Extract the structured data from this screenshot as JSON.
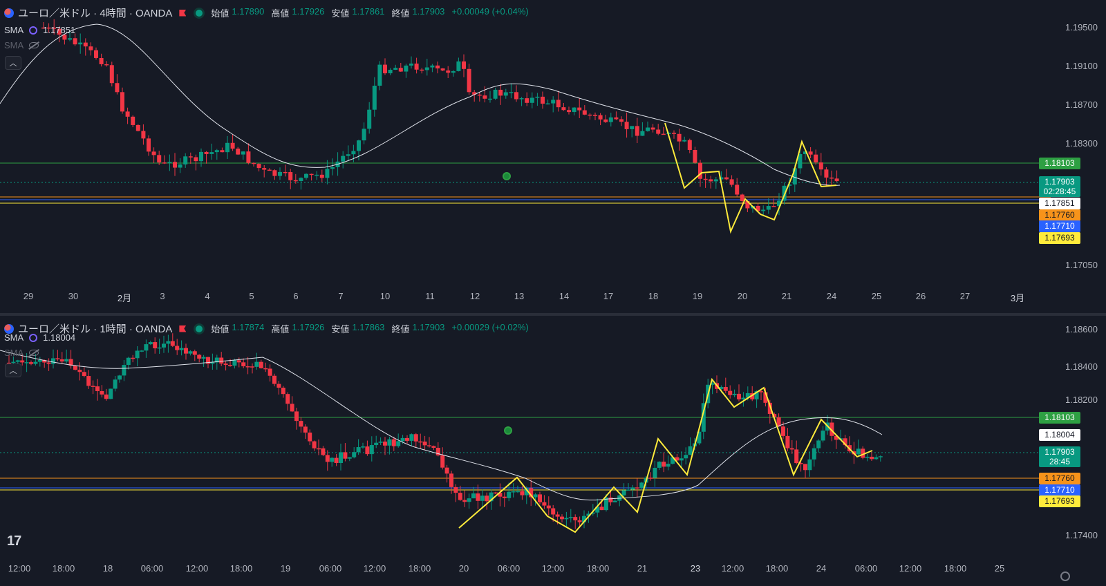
{
  "top": {
    "title": "ユーロ／米ドル · 4時間 · OANDA",
    "ohlc": [
      {
        "k": "始値",
        "v": "1.17890"
      },
      {
        "k": "高値",
        "v": "1.17926"
      },
      {
        "k": "安値",
        "v": "1.17861"
      },
      {
        "k": "終値",
        "v": "1.17903"
      }
    ],
    "change": "+0.00049 (+0.04%)",
    "sma1_label": "SMA",
    "sma1_value": "1.17851",
    "sma2_label": "SMA",
    "y_ticks": [
      "1.19500",
      "1.19100",
      "1.18700",
      "1.18300",
      "1.17050"
    ],
    "price_labels": {
      "green": "1.18103",
      "last": "1.17903",
      "countdown": "02:28:45",
      "sma": "1.17851",
      "orange": "1.17760",
      "blue": "1.17710",
      "yellow": "1.17693"
    },
    "x_ticks": [
      "29",
      "30",
      "2月",
      "3",
      "4",
      "5",
      "6",
      "7",
      "10",
      "11",
      "12",
      "13",
      "14",
      "17",
      "18",
      "19",
      "20",
      "21",
      "24",
      "25",
      "26",
      "27",
      "3月"
    ]
  },
  "bottom": {
    "title": "ユーロ／米ドル · 1時間 · OANDA",
    "ohlc": [
      {
        "k": "始値",
        "v": "1.17874"
      },
      {
        "k": "高値",
        "v": "1.17926"
      },
      {
        "k": "安値",
        "v": "1.17863"
      },
      {
        "k": "終値",
        "v": "1.17903"
      }
    ],
    "change": "+0.00029 (+0.02%)",
    "sma1_label": "SMA",
    "sma1_value": "1.18004",
    "sma2_label": "SMA",
    "y_ticks": [
      "1.18600",
      "1.18400",
      "1.18200",
      "1.17400"
    ],
    "price_labels": {
      "green": "1.18103",
      "sma": "1.18004",
      "last": "1.17903",
      "countdown": "28:45",
      "orange": "1.17760",
      "blue": "1.17710",
      "yellow": "1.17693"
    },
    "x_ticks": [
      "12:00",
      "18:00",
      "18",
      "06:00",
      "12:00",
      "18:00",
      "19",
      "06:00",
      "12:00",
      "18:00",
      "20",
      "06:00",
      "12:00",
      "18:00",
      "21",
      "23",
      "12:00",
      "18:00",
      "24",
      "06:00",
      "12:00",
      "18:00",
      "25"
    ]
  },
  "colors": {
    "bg": "#161a25",
    "up": "#089981",
    "down": "#f23645",
    "sma": "#e0e3eb",
    "green_line": "#2ea043",
    "orange_line": "#f7931a",
    "blue_line": "#2962ff",
    "yellow_line": "#ffeb3b"
  },
  "icons": {
    "symbol": "eurusd-flag-icon",
    "collapse": "chevron-up-icon",
    "hidden": "eye-off-icon",
    "alarm": "alarm-clock-icon",
    "logo": "tradingview-logo-icon",
    "settings": "gear-icon"
  },
  "tv_logo": "17"
}
